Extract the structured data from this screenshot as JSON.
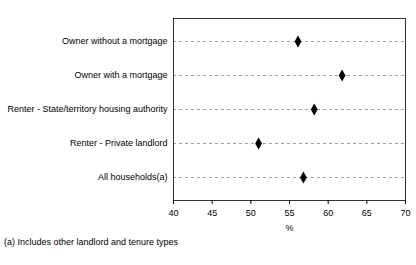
{
  "chart_data": {
    "type": "dot",
    "orientation": "horizontal",
    "categories": [
      "Owner without a mortgage",
      "Owner with a mortgage",
      "Renter - State/territory housing authority",
      "Renter - Private landlord",
      "All households(a)"
    ],
    "values": [
      56.1,
      61.8,
      58.2,
      51.0,
      56.8
    ],
    "color": "#000000",
    "marker": "diamond",
    "line_style": "dashed",
    "xlabel": "%",
    "xlim": [
      40,
      70
    ],
    "xticks": [
      40,
      45,
      50,
      55,
      60,
      65,
      70
    ],
    "grid": true,
    "caption": "(a) Includes other landlord and tenure types"
  }
}
